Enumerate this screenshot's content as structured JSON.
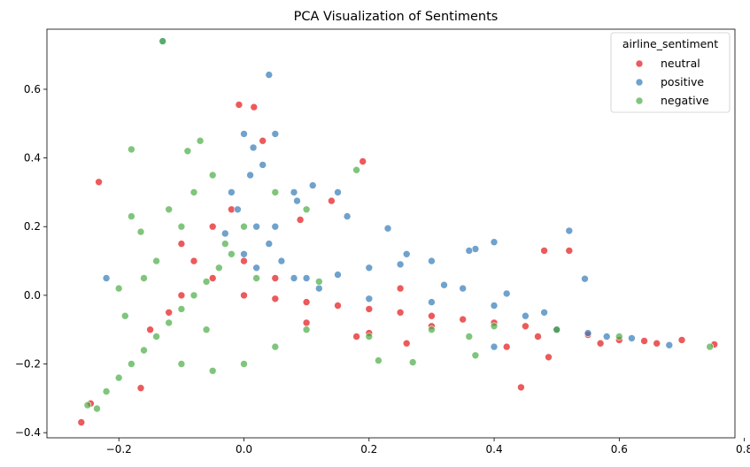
{
  "chart_data": {
    "type": "scatter",
    "title": "PCA Visualization of Sentiments",
    "xlabel": "",
    "ylabel": "",
    "xlim": [
      -0.315,
      0.785
    ],
    "ylim": [
      -0.415,
      0.775
    ],
    "xticks": [
      -0.2,
      0.0,
      0.2,
      0.4,
      0.6,
      0.8
    ],
    "xtick_labels": [
      "−0.2",
      "0.0",
      "0.2",
      "0.4",
      "0.6",
      "0.8"
    ],
    "yticks": [
      -0.4,
      -0.2,
      0.0,
      0.2,
      0.4,
      0.6
    ],
    "ytick_labels": [
      "−0.4",
      "−0.2",
      "0.0",
      "0.2",
      "0.4",
      "0.6"
    ],
    "grid": false,
    "legend": {
      "title": "airline_sentiment",
      "position": "top-right",
      "entries": [
        "neutral",
        "positive",
        "negative"
      ]
    },
    "series": [
      {
        "name": "neutral",
        "color": "#e41a1c",
        "points": [
          [
            -0.26,
            -0.37
          ],
          [
            -0.245,
            -0.315
          ],
          [
            -0.232,
            0.33
          ],
          [
            -0.165,
            -0.27
          ],
          [
            -0.008,
            0.555
          ],
          [
            0.016,
            0.548
          ],
          [
            0.03,
            0.45
          ],
          [
            0.19,
            0.39
          ],
          [
            0.14,
            0.275
          ],
          [
            0.09,
            0.22
          ],
          [
            0.443,
            -0.268
          ],
          [
            0.487,
            -0.18
          ],
          [
            0.47,
            -0.12
          ],
          [
            0.64,
            -0.133
          ],
          [
            0.66,
            -0.14
          ],
          [
            0.7,
            -0.13
          ],
          [
            0.752,
            -0.143
          ],
          [
            0.6,
            -0.13
          ],
          [
            0.55,
            -0.115
          ],
          [
            0.5,
            -0.1
          ],
          [
            0.45,
            -0.09
          ],
          [
            0.4,
            -0.08
          ],
          [
            0.35,
            -0.07
          ],
          [
            0.3,
            -0.06
          ],
          [
            0.25,
            -0.05
          ],
          [
            0.2,
            -0.04
          ],
          [
            0.15,
            -0.03
          ],
          [
            0.1,
            -0.02
          ],
          [
            0.05,
            -0.01
          ],
          [
            0.0,
            0.0
          ],
          [
            -0.05,
            0.05
          ],
          [
            -0.08,
            0.1
          ],
          [
            -0.1,
            0.15
          ],
          [
            -0.05,
            0.2
          ],
          [
            -0.02,
            0.25
          ],
          [
            0.0,
            0.1
          ],
          [
            0.05,
            0.05
          ],
          [
            -0.1,
            0.0
          ],
          [
            -0.15,
            -0.1
          ],
          [
            -0.12,
            -0.05
          ],
          [
            0.1,
            -0.08
          ],
          [
            0.2,
            -0.11
          ],
          [
            0.3,
            -0.09
          ],
          [
            0.25,
            0.02
          ],
          [
            0.48,
            0.13
          ],
          [
            0.52,
            0.13
          ],
          [
            0.57,
            -0.14
          ],
          [
            0.42,
            -0.15
          ],
          [
            0.26,
            -0.14
          ],
          [
            0.18,
            -0.12
          ]
        ]
      },
      {
        "name": "positive",
        "color": "#377eb8",
        "points": [
          [
            0.04,
            0.642
          ],
          [
            -0.13,
            0.74
          ],
          [
            0.0,
            0.47
          ],
          [
            0.05,
            0.47
          ],
          [
            0.015,
            0.43
          ],
          [
            0.08,
            0.3
          ],
          [
            0.085,
            0.275
          ],
          [
            0.11,
            0.32
          ],
          [
            0.15,
            0.3
          ],
          [
            0.165,
            0.23
          ],
          [
            0.23,
            0.195
          ],
          [
            0.52,
            0.188
          ],
          [
            0.545,
            0.048
          ],
          [
            0.4,
            0.155
          ],
          [
            0.37,
            0.135
          ],
          [
            0.36,
            0.13
          ],
          [
            0.3,
            0.1
          ],
          [
            0.25,
            0.09
          ],
          [
            0.2,
            0.08
          ],
          [
            0.15,
            0.06
          ],
          [
            0.1,
            0.05
          ],
          [
            0.35,
            0.02
          ],
          [
            0.32,
            0.03
          ],
          [
            0.42,
            0.005
          ],
          [
            0.48,
            -0.05
          ],
          [
            0.4,
            -0.15
          ],
          [
            0.68,
            -0.145
          ],
          [
            0.62,
            -0.125
          ],
          [
            0.58,
            -0.12
          ],
          [
            0.55,
            -0.11
          ],
          [
            0.5,
            -0.1
          ],
          [
            0.45,
            -0.06
          ],
          [
            0.4,
            -0.03
          ],
          [
            0.3,
            -0.02
          ],
          [
            0.2,
            -0.01
          ],
          [
            0.0,
            0.12
          ],
          [
            0.02,
            0.2
          ],
          [
            -0.02,
            0.3
          ],
          [
            0.01,
            0.35
          ],
          [
            0.03,
            0.38
          ],
          [
            -0.01,
            0.25
          ],
          [
            0.04,
            0.15
          ],
          [
            0.05,
            0.2
          ],
          [
            -0.03,
            0.18
          ],
          [
            0.02,
            0.08
          ],
          [
            0.06,
            0.1
          ],
          [
            0.08,
            0.05
          ],
          [
            0.12,
            0.02
          ],
          [
            -0.22,
            0.05
          ],
          [
            0.26,
            0.12
          ]
        ]
      },
      {
        "name": "negative",
        "color": "#4daf4a",
        "points": [
          [
            -0.13,
            0.74
          ],
          [
            -0.18,
            0.425
          ],
          [
            -0.07,
            0.45
          ],
          [
            -0.09,
            0.42
          ],
          [
            -0.18,
            0.23
          ],
          [
            -0.165,
            0.185
          ],
          [
            0.18,
            0.365
          ],
          [
            -0.25,
            -0.32
          ],
          [
            -0.235,
            -0.33
          ],
          [
            -0.22,
            -0.28
          ],
          [
            -0.2,
            -0.24
          ],
          [
            -0.18,
            -0.2
          ],
          [
            -0.16,
            -0.16
          ],
          [
            -0.14,
            -0.12
          ],
          [
            -0.12,
            -0.08
          ],
          [
            -0.1,
            -0.04
          ],
          [
            -0.08,
            0.0
          ],
          [
            -0.06,
            0.04
          ],
          [
            -0.04,
            0.08
          ],
          [
            -0.02,
            0.12
          ],
          [
            -0.1,
            0.2
          ],
          [
            -0.12,
            0.25
          ],
          [
            -0.08,
            0.3
          ],
          [
            -0.05,
            0.35
          ],
          [
            -0.14,
            0.1
          ],
          [
            -0.16,
            0.05
          ],
          [
            -0.19,
            -0.06
          ],
          [
            -0.2,
            0.02
          ],
          [
            -0.1,
            -0.2
          ],
          [
            -0.05,
            -0.22
          ],
          [
            0.0,
            -0.2
          ],
          [
            0.05,
            -0.15
          ],
          [
            0.1,
            -0.1
          ],
          [
            0.2,
            -0.12
          ],
          [
            0.3,
            -0.1
          ],
          [
            0.4,
            -0.09
          ],
          [
            0.5,
            -0.1
          ],
          [
            0.6,
            -0.12
          ],
          [
            0.745,
            -0.15
          ],
          [
            0.215,
            -0.19
          ],
          [
            0.27,
            -0.195
          ],
          [
            0.37,
            -0.175
          ],
          [
            0.36,
            -0.12
          ],
          [
            0.1,
            0.25
          ],
          [
            0.05,
            0.3
          ],
          [
            0.0,
            0.2
          ],
          [
            -0.03,
            0.15
          ],
          [
            0.02,
            0.05
          ],
          [
            -0.06,
            -0.1
          ],
          [
            0.12,
            0.04
          ]
        ]
      }
    ]
  }
}
